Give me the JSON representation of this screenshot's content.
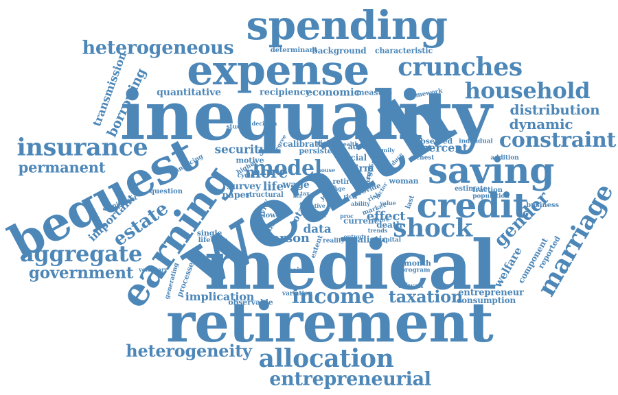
{
  "colors": {
    "word": "#4d87b8",
    "background": "#ffffff"
  },
  "words": [
    "inequality",
    "wealth",
    "medical",
    "retirement",
    "expense",
    "spending",
    "earning",
    "bequest",
    "saving",
    "credit",
    "crunches",
    "insurance",
    "household",
    "constraint",
    "allocation",
    "entrepreneurial",
    "aggregate",
    "shock",
    "marriage",
    "income",
    "heterogeneous",
    "heterogeneity",
    "government",
    "estate",
    "model",
    "taxation",
    "gender",
    "distribution",
    "dynamic",
    "permanent",
    "borrowing",
    "transmission",
    "important",
    "person",
    "quantitative",
    "economic",
    "recipiency",
    "background",
    "characteristic",
    "determinant",
    "measure",
    "framework",
    "security",
    "motive",
    "more",
    "survey",
    "life",
    "wage",
    "effect",
    "data",
    "welfare",
    "component",
    "reported",
    "entrepreneur",
    "consumption",
    "implication",
    "observable",
    "variation",
    "processes",
    "generating",
    "voluntary",
    "lifetime",
    "single",
    "paper",
    "question",
    "significant",
    "financing",
    "higher",
    "cycle",
    "decision",
    "degree",
    "calibration",
    "richer",
    "health",
    "adverse",
    "family",
    "reduce",
    "richest",
    "addition",
    "individual",
    "observed",
    "percent",
    "persistent",
    "firm",
    "social",
    "study",
    "receive",
    "month",
    "program",
    "business",
    "population",
    "fraction",
    "estimate",
    "woman",
    "death",
    "capital",
    "realistic",
    "current",
    "last",
    "taiwan",
    "structural",
    "lower",
    "total",
    "size",
    "extent",
    "reality",
    "activity",
    "retiree",
    "rich",
    "year",
    "risk",
    "market",
    "provide",
    "trends",
    "output",
    "age",
    "ability",
    "factor",
    "larger",
    "pattern",
    "negative",
    "recovery",
    "proc",
    "share",
    "value",
    "house",
    "find",
    "fall",
    "assets",
    "tax",
    "timing",
    "include",
    "rule"
  ]
}
